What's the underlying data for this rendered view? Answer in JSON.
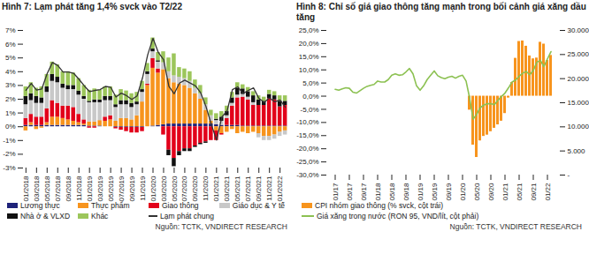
{
  "chart_data": [
    {
      "type": "bar",
      "title": "Hình 7: Lạm phát tăng 1,4% svck vào T2/22",
      "source": "Nguồn: TCTK, VNDIRECT RESEARCH",
      "stacked": true,
      "grid": false,
      "legend": "bottom",
      "categories": [
        "01/2018",
        null,
        "03/2018",
        null,
        "05/2018",
        null,
        "07/2018",
        null,
        "09/2018",
        null,
        "11/2018",
        null,
        "01/2019",
        null,
        "03/2019",
        null,
        "05/2019",
        null,
        "07/2019",
        null,
        "09/2019",
        null,
        "11/2019",
        null,
        "01/2020",
        null,
        "03/2020",
        null,
        "05/2020",
        null,
        "07/2020",
        null,
        "09/2020",
        null,
        "11/2020",
        null,
        "01/2021",
        null,
        "03/2021",
        null,
        "05/2021",
        null,
        "07/2021",
        null,
        "09/2021",
        null,
        "11/2021",
        null,
        "01/2022",
        null
      ],
      "ylim": [
        -3,
        7
      ],
      "yticks": [
        {
          "value": -3,
          "label": "-3%"
        },
        {
          "value": -2,
          "label": "-2%"
        },
        {
          "value": -1,
          "label": "-1%"
        },
        {
          "value": 0,
          "label": "0%"
        },
        {
          "value": 1,
          "label": "1%"
        },
        {
          "value": 2,
          "label": "2%"
        },
        {
          "value": 3,
          "label": "3%"
        },
        {
          "value": 4,
          "label": "4%"
        },
        {
          "value": 5,
          "label": "5%"
        },
        {
          "value": 6,
          "label": "6%"
        },
        {
          "value": 7,
          "label": "7%"
        }
      ],
      "series": [
        {
          "name": "Lương thực",
          "color": "#1f237a",
          "type": "bar",
          "values": [
            0.1,
            0.1,
            0.1,
            0.1,
            0.1,
            0.1,
            0.1,
            0.1,
            0.1,
            0.1,
            0.1,
            0.1,
            0.05,
            0.05,
            0.05,
            0,
            0,
            -0.05,
            -0.05,
            -0.05,
            -0.05,
            -0.05,
            -0.05,
            0,
            0.05,
            0.1,
            0.15,
            0.2,
            0.2,
            0.2,
            0.2,
            0.2,
            0.2,
            0.2,
            0.2,
            0.2,
            0.15,
            0.1,
            0.1,
            0.1,
            0.1,
            0.05,
            0.05,
            0.05,
            0.05,
            0.05,
            0.05,
            0.05,
            0.05,
            0.05
          ]
        },
        {
          "name": "Thực phẩm",
          "color": "#f7941d",
          "type": "bar",
          "values": [
            -0.3,
            0.2,
            -0.2,
            -0.1,
            0.2,
            0.6,
            0.6,
            0.5,
            0.4,
            0.3,
            0.2,
            0.1,
            0.3,
            0.3,
            0.4,
            0.4,
            0.5,
            0.4,
            0.6,
            0.6,
            0.5,
            0.8,
            1.8,
            3.0,
            4.2,
            3.8,
            4.0,
            3.3,
            3.0,
            2.9,
            2.8,
            2.6,
            2.2,
            1.8,
            1.0,
            0.2,
            -0.3,
            -0.5,
            -0.4,
            -0.2,
            -0.5,
            -0.4,
            -0.5,
            -0.4,
            -0.5,
            -0.7,
            -0.7,
            -0.6,
            -0.4,
            -0.3
          ]
        },
        {
          "name": "Giao thông",
          "color": "#e2001a",
          "type": "bar",
          "values": [
            0.5,
            0.6,
            0.6,
            0.6,
            1.0,
            1.2,
            1.0,
            0.9,
            1.0,
            1.0,
            0.6,
            0.3,
            -0.1,
            -0.1,
            0,
            0.3,
            0.3,
            -0.1,
            -0.2,
            -0.3,
            -0.4,
            -0.4,
            -0.3,
            0.1,
            0.7,
            0.3,
            -0.6,
            -1.7,
            -2.3,
            -1.8,
            -1.6,
            -1.6,
            -1.4,
            -1.2,
            -1.1,
            -1.0,
            -0.7,
            -0.1,
            0.5,
            1.4,
            2.0,
            2.1,
            1.9,
            1.5,
            1.5,
            1.5,
            2.0,
            1.9,
            1.4,
            1.5
          ]
        },
        {
          "name": "Giáo dục & Y tế",
          "color": "#c8c8c8",
          "type": "bar",
          "values": [
            1.0,
            1.0,
            1.0,
            1.0,
            1.2,
            1.4,
            1.5,
            1.3,
            1.2,
            1.3,
            1.4,
            1.5,
            1.4,
            1.4,
            1.3,
            1.2,
            1.1,
            1.0,
            1.0,
            1.0,
            0.9,
            0.8,
            0.7,
            0.7,
            0.5,
            0.5,
            0.5,
            0.5,
            0.5,
            0.5,
            0.5,
            0.5,
            0.4,
            0.4,
            0.4,
            0.4,
            0.3,
            0.3,
            0.2,
            0.2,
            0.2,
            0.2,
            0.2,
            0.2,
            -0.3,
            -0.3,
            -0.3,
            -0.3,
            -0.3,
            -0.3
          ]
        },
        {
          "name": "Nhà ở & VLXD",
          "color": "#111111",
          "type": "bar",
          "values": [
            0.6,
            0.5,
            0.5,
            0.4,
            0.4,
            0.5,
            0.4,
            0.3,
            0.3,
            0.3,
            0.3,
            0.2,
            0.1,
            0.2,
            0.2,
            0.3,
            0.3,
            0.2,
            0.3,
            0.3,
            0.3,
            0.2,
            0.2,
            0.2,
            0.2,
            0.1,
            0,
            -0.4,
            -0.6,
            -0.3,
            -0.2,
            -0.2,
            -0.1,
            -0.1,
            -0.1,
            0,
            0.1,
            0.3,
            0.3,
            0.4,
            0.5,
            0.4,
            0.4,
            0.5,
            0.4,
            0.3,
            0.3,
            0.3,
            0.4,
            0.3
          ]
        },
        {
          "name": "Khác",
          "color": "#9cc65b",
          "type": "bar",
          "values": [
            0.7,
            0.8,
            0.6,
            0.8,
            0.9,
            0.9,
            0.9,
            0.9,
            1.0,
            0.9,
            0.9,
            0.8,
            0.8,
            0.8,
            0.7,
            0.7,
            0.7,
            0.7,
            0.8,
            0.7,
            0.7,
            0.7,
            0.6,
            0.6,
            0.8,
            0.6,
            0.8,
            1.0,
            1.6,
            0.7,
            0.7,
            0.7,
            0.6,
            0.6,
            0.5,
            0.4,
            0.4,
            0.4,
            0.4,
            0.4,
            0.4,
            0.3,
            0.3,
            0.3,
            0.3,
            0.3,
            0.3,
            0.3,
            0.4,
            0.4
          ]
        },
        {
          "name": "Lạm phát chung",
          "color": "#333333",
          "type": "line",
          "values": [
            2.65,
            3.15,
            2.66,
            2.75,
            3.86,
            4.67,
            4.46,
            3.98,
            3.98,
            3.89,
            3.46,
            2.98,
            2.56,
            2.64,
            2.7,
            2.93,
            2.88,
            2.16,
            2.44,
            2.26,
            1.98,
            2.24,
            3.52,
            5.23,
            6.43,
            5.4,
            4.87,
            2.93,
            2.4,
            3.17,
            3.39,
            3.18,
            2.98,
            2.47,
            1.48,
            0.19,
            -0.97,
            0.7,
            1.16,
            2.7,
            2.9,
            2.41,
            2.64,
            2.82,
            2.06,
            1.77,
            2.1,
            1.81,
            1.94,
            1.42
          ]
        }
      ]
    },
    {
      "type": "bar",
      "title": "Hình 8: Chỉ số giá giao thông tăng mạnh trong bối cảnh giá xăng dầu tăng",
      "source": "Nguồn: TCTK, VNDIRECT RESEARCH",
      "grid": false,
      "legend": "bottom",
      "categories": [
        "01/17",
        null,
        null,
        null,
        "05/17",
        null,
        null,
        null,
        "09/17",
        null,
        null,
        null,
        "01/18",
        null,
        null,
        null,
        "05/18",
        null,
        null,
        null,
        "09/18",
        null,
        null,
        null,
        "01/19",
        null,
        null,
        null,
        "05/19",
        null,
        null,
        null,
        "09/19",
        null,
        null,
        null,
        "01/20",
        null,
        null,
        null,
        "05/20",
        null,
        null,
        null,
        "09/20",
        null,
        null,
        null,
        "01/21",
        null,
        null,
        null,
        "05/21",
        null,
        null,
        null,
        "09/21",
        null,
        null,
        null,
        "01/22",
        null
      ],
      "ylim": [
        -30,
        25
      ],
      "yticks": [
        {
          "value": -30,
          "label": "-30,0%"
        },
        {
          "value": -25,
          "label": "-25,0%"
        },
        {
          "value": -20,
          "label": "-20,0%"
        },
        {
          "value": -15,
          "label": "-15,0%"
        },
        {
          "value": -10,
          "label": "-10,0%"
        },
        {
          "value": -5,
          "label": "-5,0%"
        },
        {
          "value": 0,
          "label": "0,0%"
        },
        {
          "value": 5,
          "label": "5,0%"
        },
        {
          "value": 10,
          "label": "10,0%"
        },
        {
          "value": 15,
          "label": "15,0%"
        },
        {
          "value": 20,
          "label": "20,0%"
        },
        {
          "value": 25,
          "label": "25,0%"
        }
      ],
      "y2lim": [
        0,
        30000
      ],
      "y2ticks": [
        {
          "value": 0,
          "label": "-"
        },
        {
          "value": 5000,
          "label": "5.000"
        },
        {
          "value": 10000,
          "label": "10.000"
        },
        {
          "value": 15000,
          "label": "15.000"
        },
        {
          "value": 20000,
          "label": "20.000"
        },
        {
          "value": 25000,
          "label": "25.000"
        },
        {
          "value": 30000,
          "label": "30.000"
        }
      ],
      "series": [
        {
          "name": "CPI nhóm giao thông (% svck, cột trái)",
          "color": "#f7941d",
          "type": "bar",
          "values": [
            null,
            null,
            null,
            null,
            null,
            null,
            null,
            null,
            null,
            null,
            null,
            null,
            null,
            null,
            null,
            null,
            null,
            null,
            null,
            null,
            null,
            null,
            null,
            null,
            null,
            null,
            null,
            null,
            null,
            null,
            null,
            null,
            null,
            null,
            null,
            null,
            null,
            null,
            -5.3,
            -18.6,
            -23.3,
            -17.0,
            -15.3,
            -14.8,
            -13.5,
            -12.2,
            -10.9,
            -9.5,
            -6.6,
            -0.7,
            5.2,
            14.4,
            20.8,
            21.0,
            19.0,
            15.3,
            14.2,
            14.5,
            20.5,
            19.8,
            13.6,
            15.5
          ]
        },
        {
          "name": "Giá xăng trong nước (RON 95, VND/lít, cột phải)",
          "color": "#8cc152",
          "type": "line",
          "axis": "y2",
          "values": [
            17800,
            17600,
            17900,
            18100,
            18000,
            17200,
            17000,
            17500,
            18000,
            18400,
            18600,
            18800,
            19500,
            19300,
            19300,
            19800,
            20700,
            21000,
            20700,
            20800,
            21400,
            22100,
            21000,
            18500,
            17600,
            18500,
            19800,
            20700,
            21600,
            20600,
            20200,
            20000,
            20300,
            20500,
            20100,
            20500,
            20700,
            19500,
            16000,
            11600,
            12600,
            14000,
            14500,
            14800,
            14800,
            14600,
            15500,
            16300,
            17000,
            18100,
            19300,
            19700,
            20500,
            21100,
            21500,
            20800,
            21700,
            23400,
            23800,
            22500,
            24100,
            25600
          ]
        }
      ]
    }
  ]
}
